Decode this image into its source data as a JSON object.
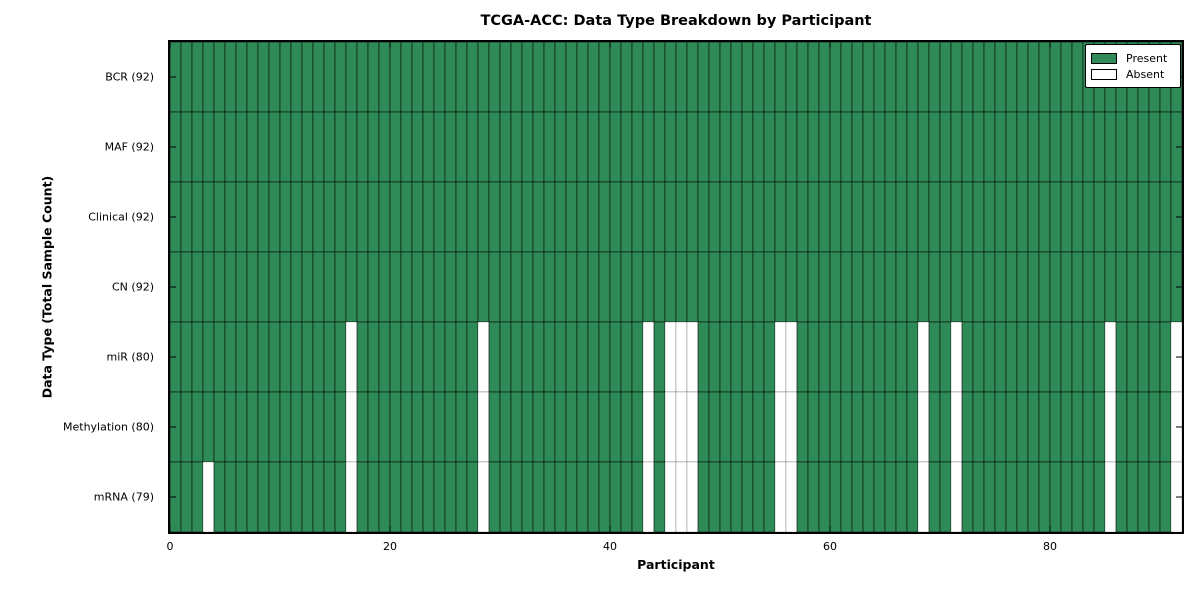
{
  "chart_data": {
    "type": "heatmap",
    "title": "TCGA-ACC: Data Type Breakdown by Participant",
    "xlabel": "Participant",
    "ylabel": "Data Type (Total Sample Count)",
    "n_participants": 92,
    "x_ticks": [
      0,
      20,
      40,
      60,
      80
    ],
    "x_range": [
      0,
      92
    ],
    "grid": "cell-borders",
    "legend_position": "upper-right",
    "legend": [
      {
        "label": "Present",
        "color": "#2e8b57"
      },
      {
        "label": "Absent",
        "color": "#ffffff"
      }
    ],
    "colors": {
      "present": "#2e8b57",
      "absent": "#ffffff",
      "axis": "#000000"
    },
    "rows": [
      {
        "name": "BCR",
        "label": "BCR (92)",
        "present_count": 92,
        "absent_participants": []
      },
      {
        "name": "MAF",
        "label": "MAF (92)",
        "present_count": 92,
        "absent_participants": []
      },
      {
        "name": "Clinical",
        "label": "Clinical (92)",
        "present_count": 92,
        "absent_participants": []
      },
      {
        "name": "CN",
        "label": "CN (92)",
        "present_count": 92,
        "absent_participants": []
      },
      {
        "name": "miR",
        "label": "miR (80)",
        "present_count": 80,
        "absent_participants": [
          16,
          28,
          43,
          45,
          46,
          47,
          55,
          56,
          68,
          71,
          85,
          91
        ]
      },
      {
        "name": "Methylation",
        "label": "Methylation (80)",
        "present_count": 80,
        "absent_participants": [
          16,
          28,
          43,
          45,
          46,
          47,
          55,
          56,
          68,
          71,
          85,
          91
        ]
      },
      {
        "name": "mRNA",
        "label": "mRNA (79)",
        "present_count": 79,
        "absent_participants": [
          3,
          16,
          28,
          43,
          45,
          46,
          47,
          55,
          56,
          68,
          71,
          85,
          91
        ]
      }
    ]
  }
}
